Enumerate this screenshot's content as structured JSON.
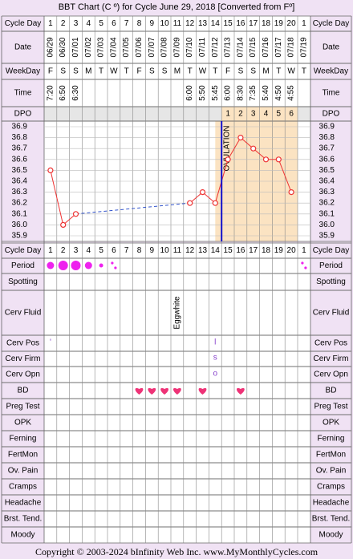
{
  "title": "BBT Chart (C º) for Cycle June 29, 2018  [Converted from Fº]",
  "footer": "Copyright © 2003-2024 bInfinity Web Inc.    www.MyMonthlyCycles.com",
  "row_labels": {
    "cycle_day": "Cycle Day",
    "date": "Date",
    "weekday": "WeekDay",
    "time": "Time",
    "dpo": "DPO",
    "period": "Period",
    "spotting": "Spotting",
    "cerv_fluid": "Cerv Fluid",
    "cerv_pos": "Cerv Pos",
    "cerv_firm": "Cerv Firm",
    "cerv_opn": "Cerv Opn",
    "bd": "BD",
    "preg_test": "Preg Test",
    "opk": "OPK",
    "ferning": "Ferning",
    "fertmon": "FertMon",
    "ov_pain": "Ov. Pain",
    "cramps": "Cramps",
    "headache": "Headache",
    "brst_tend": "Brst. Tend.",
    "moody": "Moody"
  },
  "days": [
    "1",
    "2",
    "3",
    "4",
    "5",
    "6",
    "7",
    "8",
    "9",
    "10",
    "11",
    "12",
    "13",
    "14",
    "15",
    "16",
    "17",
    "18",
    "19",
    "20",
    "1"
  ],
  "dates": [
    "06/29",
    "06/30",
    "07/01",
    "07/02",
    "07/03",
    "07/04",
    "07/05",
    "07/06",
    "07/07",
    "07/08",
    "07/09",
    "07/10",
    "07/11",
    "07/12",
    "07/13",
    "07/14",
    "07/15",
    "07/16",
    "07/17",
    "07/18",
    "07/19"
  ],
  "weekdays": [
    "F",
    "S",
    "S",
    "M",
    "T",
    "W",
    "T",
    "F",
    "S",
    "S",
    "M",
    "T",
    "W",
    "T",
    "F",
    "S",
    "S",
    "M",
    "T",
    "W",
    "T"
  ],
  "times": [
    "7:20",
    "6:50",
    "6:30",
    "",
    "",
    "",
    "",
    "",
    "",
    "",
    "",
    "6:00",
    "5:50",
    "5:45",
    "6:00",
    "8:30",
    "7:35",
    "5:40",
    "4:50",
    "4:55",
    ""
  ],
  "dpo": [
    "",
    "",
    "",
    "",
    "",
    "",
    "",
    "",
    "",
    "",
    "",
    "",
    "",
    "",
    "1",
    "2",
    "3",
    "4",
    "5",
    "6",
    ""
  ],
  "cerv_fluid_text": [
    "",
    "",
    "",
    "",
    "",
    "",
    "",
    "",
    "",
    "",
    "Eggwhite",
    "",
    "",
    "",
    "",
    "",
    "",
    "",
    "",
    "",
    ""
  ],
  "cerv_pos_marks": {
    "1": "'",
    "14": "l"
  },
  "cerv_firm_marks": {
    "14": "s"
  },
  "cerv_opn_marks": {
    "14": "o"
  },
  "ovulation_label": "OVULATION",
  "colors": {
    "background": "#f0e2f4",
    "grid": "#666666",
    "pre_ov_fill": "#ffffff",
    "post_ov_fill": "#fbe3c2",
    "temp_line": "#ee3333",
    "fill_line": "#3355cc",
    "ovulation_line": "#1111cc",
    "period_dot": "#ee22ee",
    "bd_heart": "#ee3377"
  },
  "chart_data": {
    "type": "line",
    "title": "BBT Chart (C º) for Cycle June 29, 2018  [Converted from Fº]",
    "xlabel": "Cycle Day",
    "ylabel": "",
    "x": [
      "1",
      "2",
      "3",
      "4",
      "5",
      "6",
      "7",
      "8",
      "9",
      "10",
      "11",
      "12",
      "13",
      "14",
      "15",
      "16",
      "17",
      "18",
      "19",
      "20",
      "1"
    ],
    "ylim": [
      35.9,
      36.9
    ],
    "y_ticks": [
      "36.9",
      "36.8",
      "36.7",
      "36.6",
      "36.5",
      "36.4",
      "36.3",
      "36.2",
      "36.1",
      "36.0",
      "35.9"
    ],
    "series": [
      {
        "values": [
          36.5,
          36.0,
          36.1,
          null,
          null,
          null,
          null,
          null,
          null,
          null,
          null,
          36.2,
          36.3,
          36.2,
          36.6,
          36.8,
          36.7,
          36.6,
          36.6,
          36.3,
          null
        ]
      }
    ],
    "ovulation_day": 14,
    "grid": true
  },
  "period_levels": [
    2,
    3,
    3,
    2,
    1,
    0.5,
    0,
    0,
    0,
    0,
    0,
    0,
    0,
    0,
    0,
    0,
    0,
    0,
    0,
    0,
    0.5
  ],
  "bd_days": [
    8,
    9,
    10,
    11,
    13,
    16
  ]
}
